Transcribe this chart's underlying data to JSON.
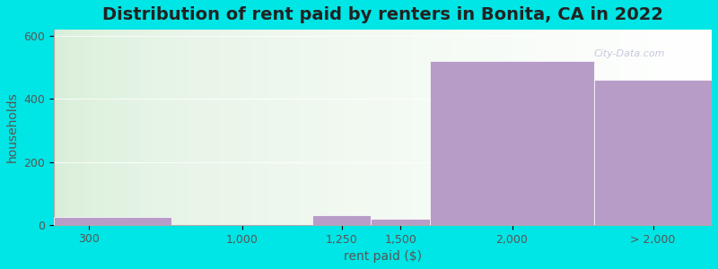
{
  "title": "Distribution of rent paid by renters in Bonita, CA in 2022",
  "xlabel": "rent paid ($)",
  "ylabel": "households",
  "bin_edges": [
    0,
    500,
    1100,
    1350,
    1600,
    2300,
    2800
  ],
  "tick_positions": [
    150,
    800,
    1225,
    1475,
    1950,
    2550
  ],
  "tick_labels": [
    "300",
    "1,000",
    "1,250",
    "1,500",
    "2,000",
    "> 2,000"
  ],
  "values": [
    25,
    0,
    30,
    18,
    520,
    460
  ],
  "bar_color": "#b89cc8",
  "bg_outer": "#00e5e5",
  "bg_plot_left_color": "#d5edd5",
  "bg_plot_right_color": "#f0eef8",
  "gradient_split": 0.65,
  "ylim": [
    0,
    620
  ],
  "yticks": [
    0,
    200,
    400,
    600
  ],
  "title_fontsize": 14,
  "axis_label_fontsize": 10,
  "tick_fontsize": 9,
  "watermark_text": "City-Data.com"
}
